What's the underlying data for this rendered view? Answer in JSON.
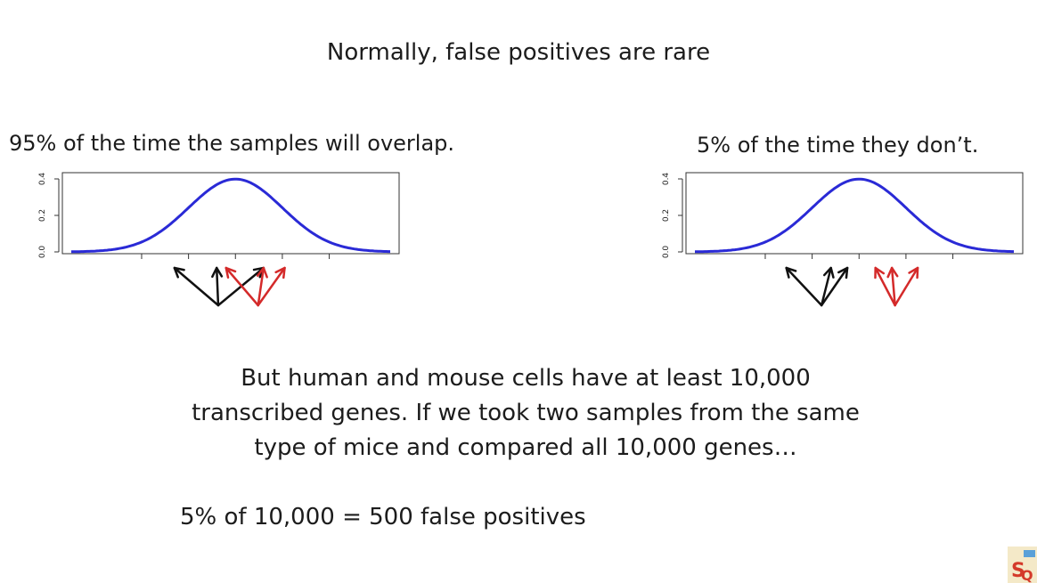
{
  "slide": {
    "title": "Normally, false positives are rare",
    "left_caption": "95% of the time the samples will overlap.",
    "right_caption": "5% of the time they don’t.",
    "body_lines": [
      "But human and mouse cells have at least 10,000",
      "transcribed genes. If we took two samples from the same",
      "type of mice and compared all 10,000 genes…"
    ],
    "equation": "5% of 10,000 = 500 false positives",
    "logo_text": "SQ"
  },
  "colors": {
    "curve": "#2a2ad6",
    "sample_a": "#111111",
    "sample_b": "#d42a2a"
  },
  "chart_data": [
    {
      "type": "line",
      "curve": "normal density",
      "mean": 0,
      "sd": 1,
      "ylim": [
        0,
        0.4
      ],
      "y_ticks": [
        "0.0",
        "0.2",
        "0.4"
      ],
      "samples_black": [
        -1.3,
        -0.4,
        0.6
      ],
      "samples_red": [
        -0.2,
        0.6,
        1.05
      ]
    },
    {
      "type": "line",
      "curve": "normal density",
      "mean": 0,
      "sd": 1,
      "ylim": [
        0,
        0.4
      ],
      "y_ticks": [
        "0.0",
        "0.2",
        "0.4"
      ],
      "samples_black": [
        -1.55,
        -0.6,
        -0.25
      ],
      "samples_red": [
        0.35,
        0.7,
        1.25
      ]
    }
  ]
}
